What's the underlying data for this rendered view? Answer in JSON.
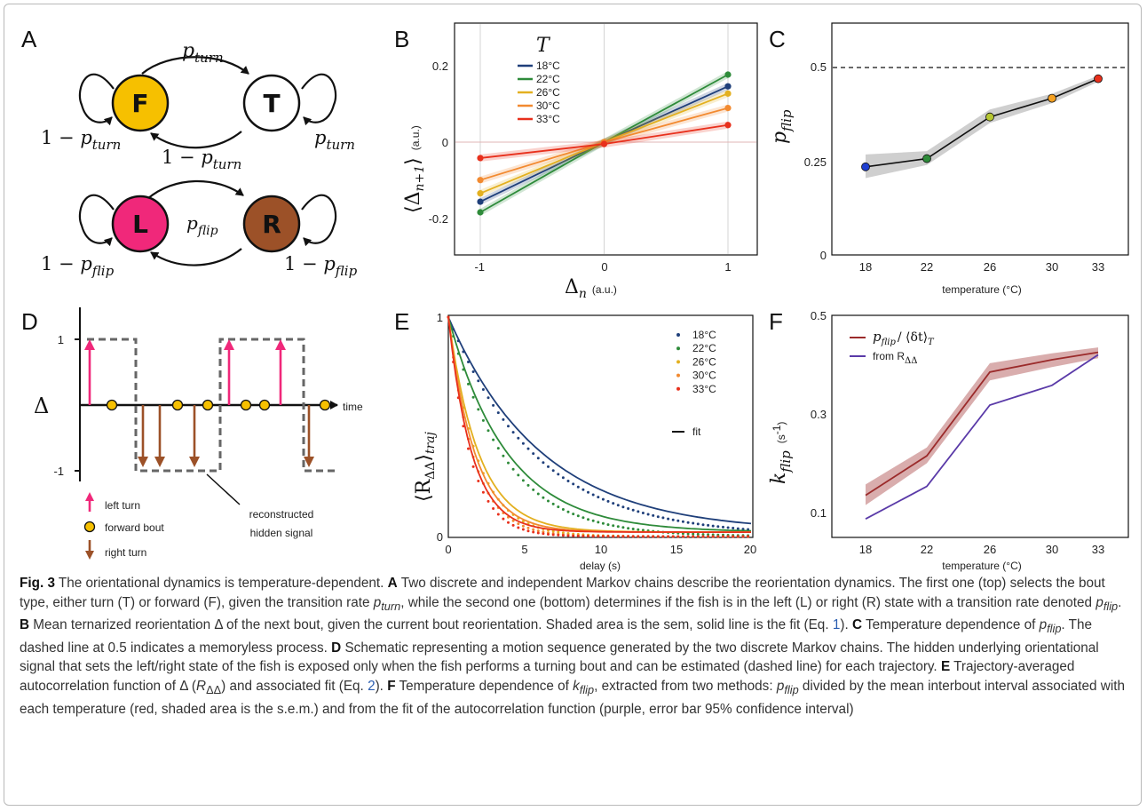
{
  "panels": {
    "a": {
      "label": "A",
      "chain1": {
        "states": [
          "F",
          "T"
        ],
        "p_top": "p",
        "p_top_sub": "turn",
        "one_minus": "1 − ",
        "p_turn": "p",
        "p_turn_sub": "turn"
      },
      "chain2": {
        "states": [
          "L",
          "R"
        ],
        "p_mid": "p",
        "p_mid_sub": "flip"
      },
      "colors": {
        "F": "#f6c000",
        "T": "#ffffff",
        "L": "#f0287a",
        "R": "#9c5128"
      }
    },
    "b": {
      "label": "B",
      "legend_title": "T",
      "ylabel_math": "⟨Δ",
      "ylabel_sub": "n+1",
      "ylabel_close": "⟩",
      "ylabel_unit": "(a.u.)",
      "xlabel_math": "Δ",
      "xlabel_sub": "n",
      "xlabel_unit": "(a.u.)",
      "xticks": [
        "-1",
        "0",
        "1"
      ],
      "yticks": [
        "-0.2",
        "0",
        "0.2"
      ]
    },
    "c": {
      "label": "C",
      "ylabel_math": "p",
      "ylabel_sub": "flip",
      "xlabel": "temperature (°C)",
      "xticks": [
        "18",
        "22",
        "26",
        "30",
        "33"
      ],
      "yticks": [
        "0",
        "0.25",
        "0.5"
      ]
    },
    "d": {
      "label": "D",
      "ylabel": "Δ",
      "time_label": "time",
      "yticks": [
        "1",
        "-1"
      ],
      "legend": [
        "left turn",
        "forward bout",
        "right turn"
      ],
      "annotation_line1": "reconstructed",
      "annotation_line2": "hidden signal"
    },
    "e": {
      "label": "E",
      "ylabel_math": "⟨R",
      "ylabel_sub": "ΔΔ",
      "ylabel_close": "⟩",
      "ylabel_sub2": "traj",
      "xlabel": "delay (s)",
      "xticks": [
        "0",
        "5",
        "10",
        "15",
        "20"
      ],
      "yticks": [
        "0",
        "1"
      ],
      "legend_fit": "fit"
    },
    "f": {
      "label": "F",
      "ylabel_math": "k",
      "ylabel_sub": "flip",
      "ylabel_unit": "(s",
      "ylabel_unit_sup": "-1",
      "ylabel_unit_close": ")",
      "xlabel": "temperature (°C)",
      "xticks": [
        "18",
        "22",
        "26",
        "30",
        "33"
      ],
      "yticks": [
        "0.1",
        "0.3",
        "0.5"
      ],
      "legend1_math": "p",
      "legend1_sub": "flip",
      "legend1_rest": "/ ⟨δt⟩",
      "legend1_sub2": "T",
      "legend2_pre": "from R",
      "legend2_sub": "ΔΔ"
    }
  },
  "chart_data": [
    {
      "panel": "B",
      "type": "line",
      "x": [
        -1,
        0,
        1
      ],
      "xlim": [
        -1.2,
        1.25
      ],
      "ylim": [
        -0.3,
        0.31
      ],
      "series": [
        {
          "name": "18°C",
          "color": "#1f3f7a",
          "values": [
            -0.157,
            0.0,
            0.147
          ]
        },
        {
          "name": "22°C",
          "color": "#2e8b3a",
          "values": [
            -0.185,
            0.0,
            0.178
          ]
        },
        {
          "name": "26°C",
          "color": "#e3b020",
          "values": [
            -0.135,
            0.0,
            0.128
          ]
        },
        {
          "name": "30°C",
          "color": "#f28a30",
          "values": [
            -0.1,
            0.0,
            0.09
          ]
        },
        {
          "name": "33°C",
          "color": "#e8301c",
          "values": [
            -0.042,
            -0.005,
            0.045
          ]
        }
      ]
    },
    {
      "panel": "C",
      "type": "line",
      "x": [
        18,
        22,
        26,
        30,
        33
      ],
      "ylim": [
        0,
        0.55
      ],
      "reference_line": 0.5,
      "values": [
        0.235,
        0.257,
        0.368,
        0.418,
        0.47
      ],
      "sem_low": [
        0.205,
        0.24,
        0.352,
        0.405,
        0.462
      ],
      "sem_high": [
        0.268,
        0.277,
        0.388,
        0.43,
        0.478
      ],
      "point_colors": [
        "#1f3fd0",
        "#2e8b3a",
        "#b7c832",
        "#f5a020",
        "#e8301c"
      ]
    },
    {
      "panel": "E",
      "type": "line",
      "xlim": [
        0,
        20
      ],
      "ylim": [
        0,
        1
      ],
      "series": [
        {
          "name": "18°C",
          "color": "#1f3f7a",
          "tau": 6.2
        },
        {
          "name": "22°C",
          "color": "#2e8b3a",
          "tau": 3.9
        },
        {
          "name": "26°C",
          "color": "#e3b020",
          "tau": 2.0
        },
        {
          "name": "30°C",
          "color": "#f28a30",
          "tau": 1.75
        },
        {
          "name": "33°C",
          "color": "#e8301c",
          "tau": 1.55
        }
      ]
    },
    {
      "panel": "F",
      "type": "line",
      "x": [
        18,
        22,
        26,
        30,
        33
      ],
      "ylim": [
        0.05,
        0.5
      ],
      "series": [
        {
          "color": "#9b2b2b",
          "values": [
            0.135,
            0.215,
            0.385,
            0.41,
            0.425
          ],
          "band_low": [
            0.115,
            0.2,
            0.368,
            0.395,
            0.413
          ],
          "band_high": [
            0.157,
            0.232,
            0.403,
            0.423,
            0.435
          ]
        },
        {
          "color": "#5a3aa8",
          "values": [
            0.087,
            0.153,
            0.318,
            0.358,
            0.42
          ]
        }
      ]
    }
  ],
  "caption": {
    "fig": "Fig. 3",
    "intro": " The orientational dynamics is temperature-dependent. ",
    "a_label": "A",
    "a_text1": " Two discrete and independent Markov chains describe the reorientation dynamics. The first one (top) selects the bout type, either turn (T) or forward (F), given the transition rate ",
    "p": "p",
    "turn": "turn",
    "a_text2": ", while the second one (bottom) determines if the fish is in the left (L) or right (R) state with a transition rate denoted ",
    "flip": "flip",
    "period": ". ",
    "b_label": "B",
    "b_text1": " Mean ternarized reorientation Δ of the next bout, given the current bout reorientation. Shaded area is the sem, solid line is the fit (Eq. ",
    "eq1": "1",
    "b_text2": "). ",
    "c_label": "C",
    "c_text1": " Temperature dependence of ",
    "c_text2": ". The dashed line at 0.5 indicates a memoryless process. ",
    "d_label": "D",
    "d_text": " Schematic representing a motion sequence generated by the two discrete Markov chains. The hidden underlying orientational signal that sets the left/right state of the fish is exposed only when the fish performs a turning bout and can be estimated (dashed line) for each trajectory. ",
    "e_label": "E",
    "e_text1": " Trajectory-averaged autocorrelation function of Δ (",
    "R": "R",
    "dd": "ΔΔ",
    "e_text2": ") and associated fit (Eq. ",
    "eq2": "2",
    "e_text3": "). ",
    "f_label": "F",
    "f_text1": " Temperature dependence of ",
    "k": "k",
    "f_text2": ", extracted from two methods: ",
    "f_text3": " divided by the mean interbout interval associated with each temperature (red, shaded area is the s.e.m.) and from the fit of the autocorrelation function (purple, error bar 95% confidence interval)"
  }
}
